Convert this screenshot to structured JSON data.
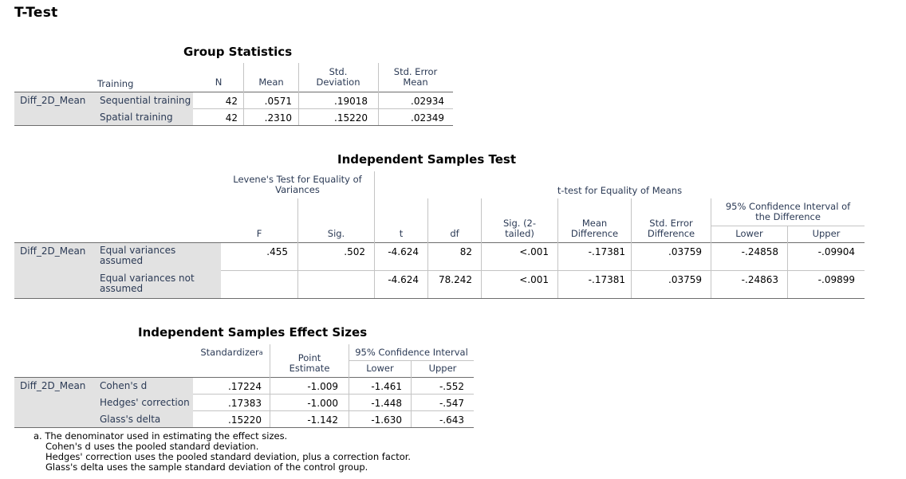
{
  "title": "T-Test",
  "group_statistics": {
    "title": "Group Statistics",
    "headers": {
      "training": "Training",
      "n": "N",
      "mean": "Mean",
      "sd_l1": "Std.",
      "sd_l2": "Deviation",
      "se_l1": "Std. Error",
      "se_l2": "Mean"
    },
    "variable": "Diff_2D_Mean",
    "rows": [
      {
        "label": "Sequential training",
        "n": "42",
        "mean": ".0571",
        "sd": ".19018",
        "se": ".02934"
      },
      {
        "label": "Spatial training",
        "n": "42",
        "mean": ".2310",
        "sd": ".15220",
        "se": ".02349"
      }
    ]
  },
  "independent_test": {
    "title": "Independent Samples Test",
    "levene_l1": "Levene's Test for Equality of",
    "levene_l2": "Variances",
    "ttest": "t-test for Equality of Means",
    "ci_l1": "95% Confidence Interval of",
    "ci_l2": "the Difference",
    "headers": {
      "f": "F",
      "sig": "Sig.",
      "t": "t",
      "df": "df",
      "sig2_l1": "Sig. (2-",
      "sig2_l2": "tailed)",
      "md_l1": "Mean",
      "md_l2": "Difference",
      "sed_l1": "Std. Error",
      "sed_l2": "Difference",
      "lower": "Lower",
      "upper": "Upper"
    },
    "variable": "Diff_2D_Mean",
    "rows": [
      {
        "label_l1": "Equal variances",
        "label_l2": "assumed",
        "f": ".455",
        "sig": ".502",
        "t": "-4.624",
        "df": "82",
        "sig2": "<.001",
        "md": "-.17381",
        "sed": ".03759",
        "lower": "-.24858",
        "upper": "-.09904"
      },
      {
        "label_l1": "Equal variances not",
        "label_l2": "assumed",
        "f": "",
        "sig": "",
        "t": "-4.624",
        "df": "78.242",
        "sig2": "<.001",
        "md": "-.17381",
        "sed": ".03759",
        "lower": "-.24863",
        "upper": "-.09899"
      }
    ]
  },
  "effect_sizes": {
    "title": "Independent Samples Effect Sizes",
    "headers": {
      "standardizer": "Standardizer",
      "standardizer_sup": "a",
      "pe_l1": "Point",
      "pe_l2": "Estimate",
      "ci": "95% Confidence Interval",
      "lower": "Lower",
      "upper": "Upper"
    },
    "variable": "Diff_2D_Mean",
    "rows": [
      {
        "label": "Cohen's d",
        "std": ".17224",
        "pe": "-1.009",
        "lower": "-1.461",
        "upper": "-.552"
      },
      {
        "label": "Hedges' correction",
        "std": ".17383",
        "pe": "-1.000",
        "lower": "-1.448",
        "upper": "-.547"
      },
      {
        "label": "Glass's delta",
        "std": ".15220",
        "pe": "-1.142",
        "lower": "-1.630",
        "upper": "-.643"
      }
    ],
    "footnotes": [
      "a. The denominator used in estimating the effect sizes.",
      "Cohen's d uses the pooled standard deviation.",
      "Hedges' correction uses the pooled standard deviation, plus a correction factor.",
      "Glass's delta uses the sample standard deviation of the control group."
    ]
  }
}
